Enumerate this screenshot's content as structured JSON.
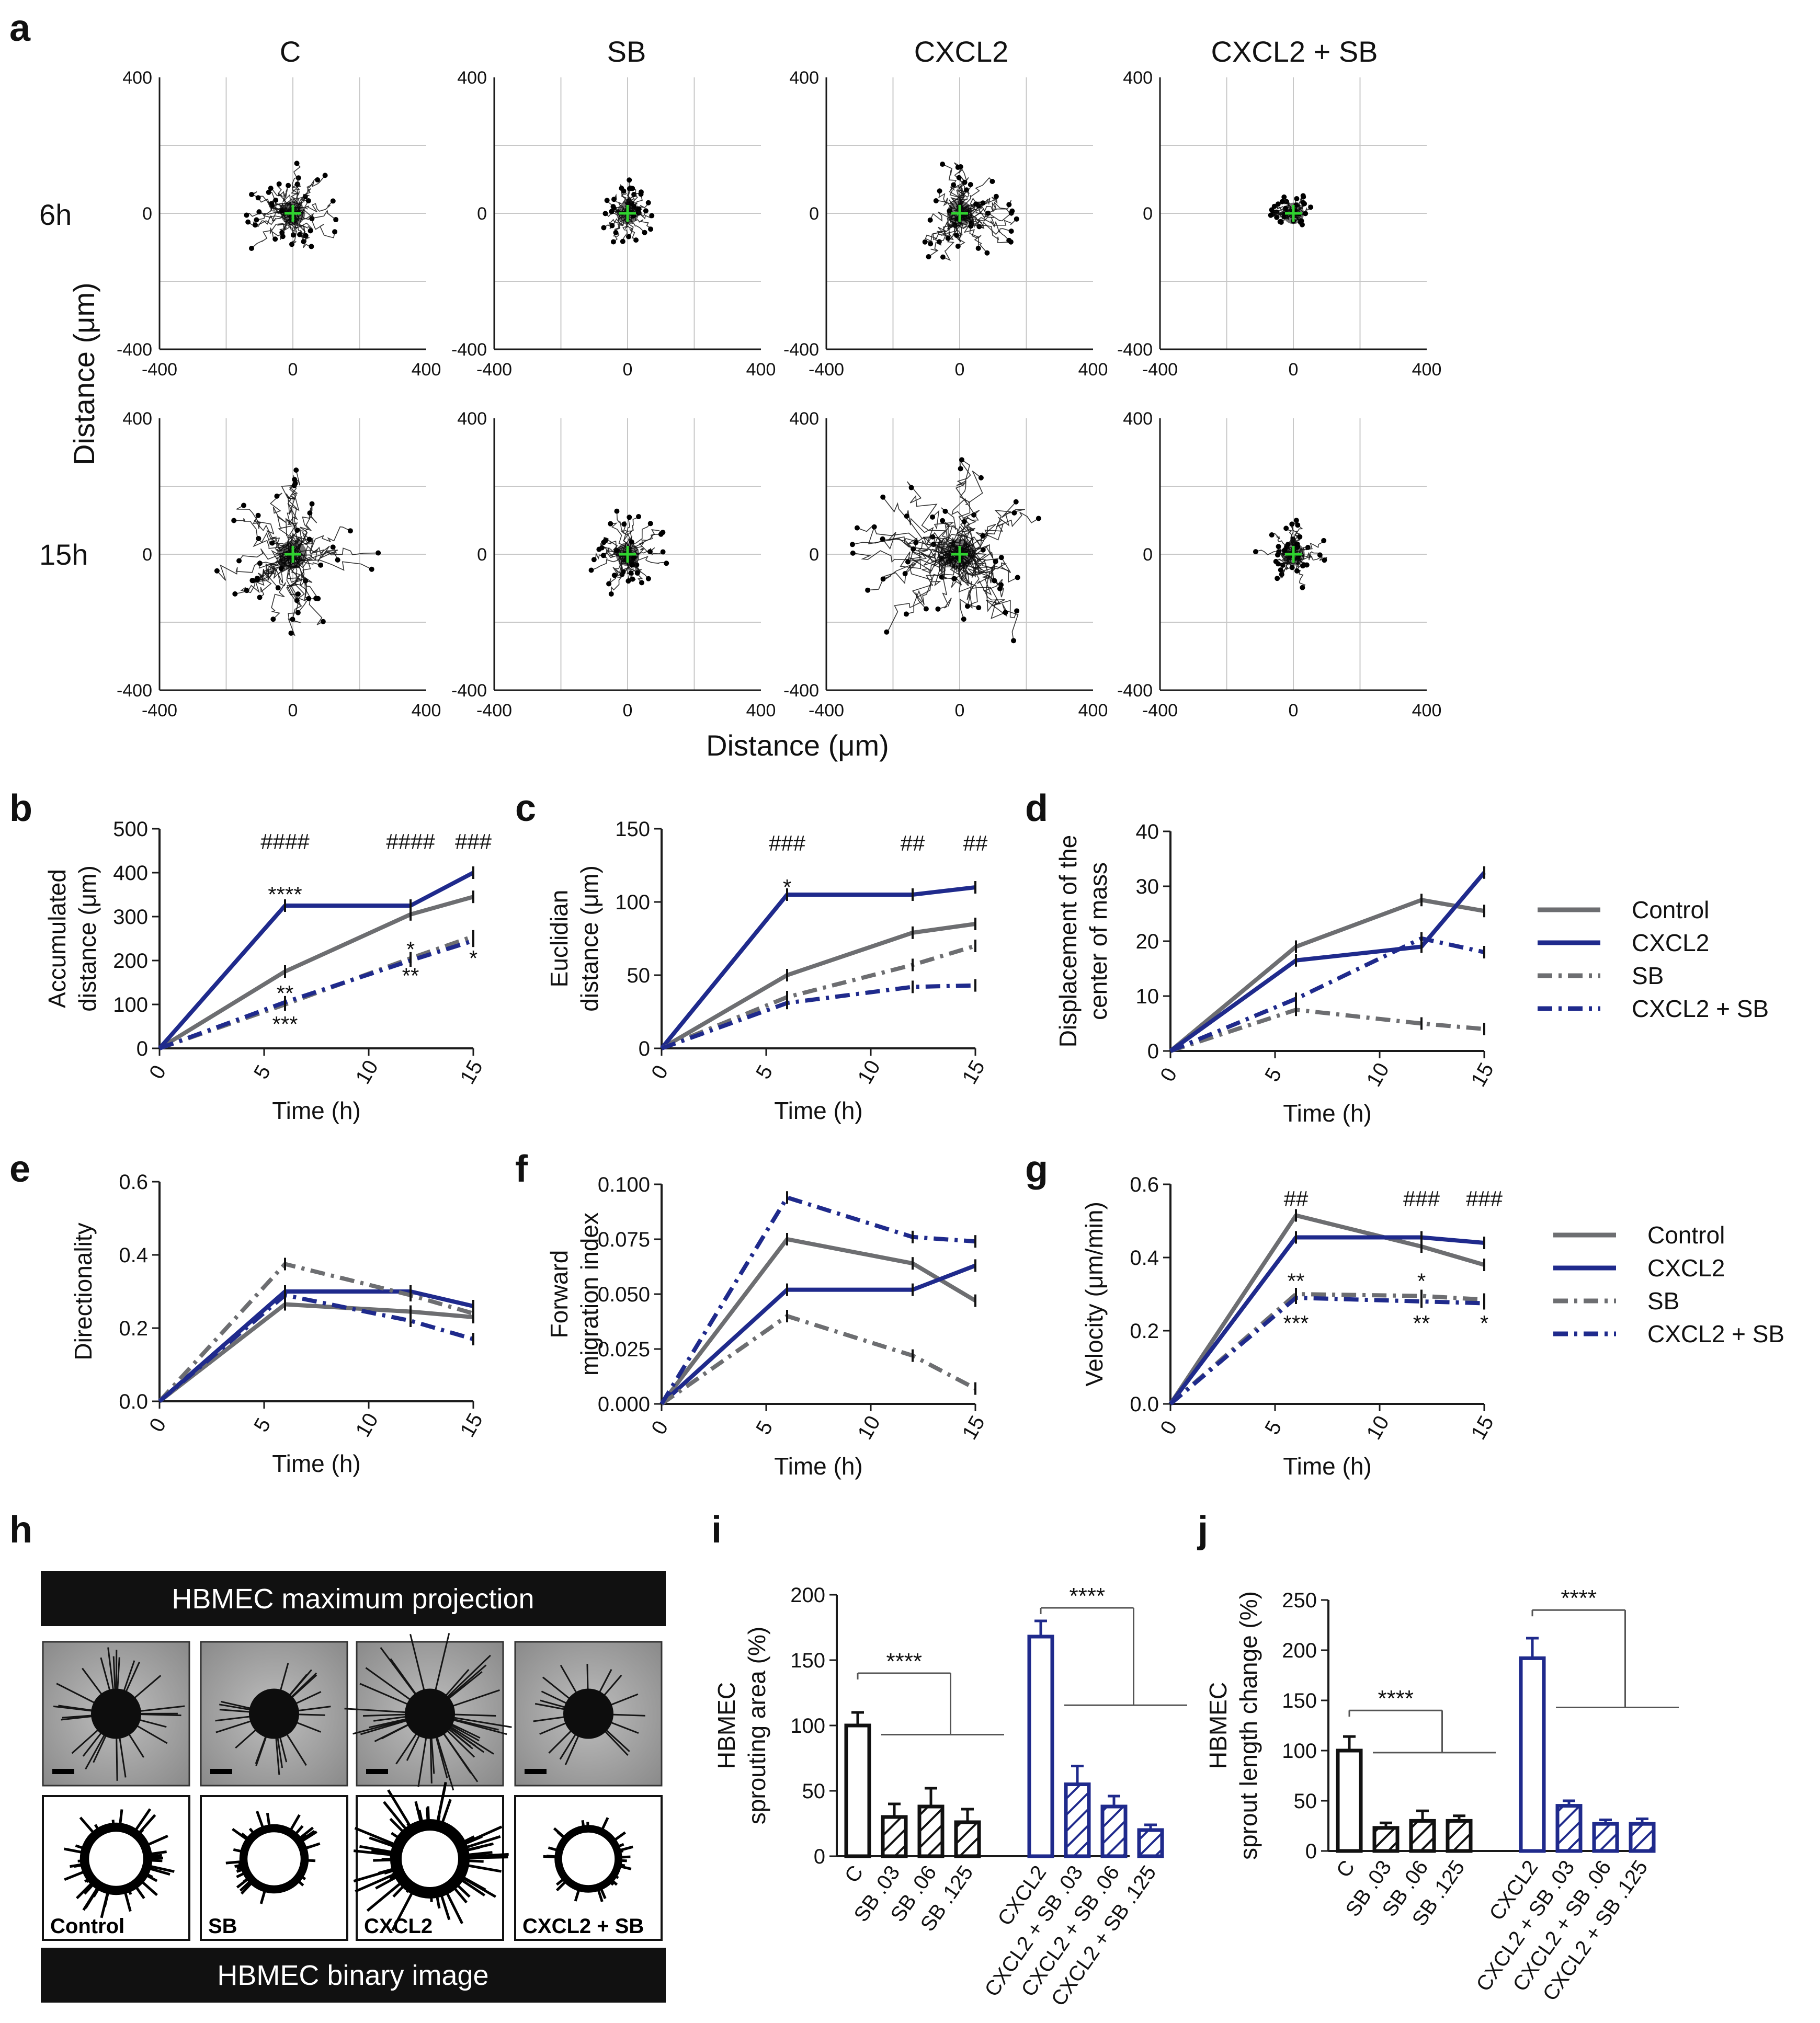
{
  "figure": {
    "panel_letters": [
      "a",
      "b",
      "c",
      "d",
      "e",
      "f",
      "g",
      "h",
      "i",
      "j"
    ],
    "colors": {
      "control": "#6d6e71",
      "cxcl2": "#1f2a8c",
      "sb": "#6d6e71",
      "cxcl2sb": "#1f2a8c",
      "axis": "#1a1a1a",
      "grid": "#c8c8c8",
      "tracks": "#111111",
      "center": "#2fd12f"
    }
  },
  "chart_data": [
    {
      "id": "a",
      "type": "scatter",
      "title": "Cell migration tracks (plots)",
      "columns": [
        "C",
        "SB",
        "CXCL2",
        "CXCL2 + SB"
      ],
      "rows": [
        "6h",
        "15h"
      ],
      "xlabel": "Distance (μm)",
      "ylabel": "Distance (μm)",
      "xlim": [
        -400,
        400
      ],
      "ylim": [
        -400,
        400
      ],
      "xticks": [
        "-400",
        "0",
        "400"
      ],
      "yticks": [
        "400",
        "0",
        "-400"
      ],
      "spread": {
        "6h": [
          0.9,
          0.55,
          1.05,
          0.4
        ],
        "15h": [
          1.45,
          0.75,
          1.9,
          0.65
        ]
      },
      "center_marker": "green cross at origin"
    },
    {
      "id": "b",
      "type": "line",
      "xlabel": "Time (h)",
      "ylabel": "Accumulated distance (μm)",
      "ylabel_lines": [
        "Accumulated",
        "distance (μm)"
      ],
      "xlim": [
        0,
        15
      ],
      "ylim": [
        0,
        500
      ],
      "xticks": [
        "0",
        "5",
        "10",
        "15"
      ],
      "yticks": [
        "0",
        "100",
        "200",
        "300",
        "400",
        "500"
      ],
      "x": [
        0,
        6,
        12,
        15
      ],
      "series": [
        {
          "name": "Control",
          "values": [
            0,
            175,
            305,
            345
          ],
          "style": "solid",
          "color": "#6d6e71"
        },
        {
          "name": "CXCL2",
          "values": [
            0,
            325,
            325,
            400
          ],
          "style": "solid",
          "color": "#1f2a8c"
        },
        {
          "name": "SB",
          "values": [
            0,
            100,
            205,
            255
          ],
          "style": "dashdot",
          "color": "#6d6e71"
        },
        {
          "name": "CXCL2 + SB",
          "values": [
            0,
            105,
            200,
            245
          ],
          "style": "dashdot",
          "color": "#1f2a8c"
        }
      ],
      "annotations": [
        {
          "text": "####",
          "x": 6,
          "y": 470
        },
        {
          "text": "####",
          "x": 12,
          "y": 470
        },
        {
          "text": "###",
          "x": 15,
          "y": 470
        },
        {
          "text": "****",
          "x": 6,
          "y": 350
        },
        {
          "text": "**",
          "x": 6,
          "y": 125
        },
        {
          "text": "***",
          "x": 6,
          "y": 55
        },
        {
          "text": "*",
          "x": 12,
          "y": 225
        },
        {
          "text": "**",
          "x": 12,
          "y": 165
        },
        {
          "text": "*",
          "x": 15,
          "y": 205
        }
      ]
    },
    {
      "id": "c",
      "type": "line",
      "xlabel": "Time (h)",
      "ylabel": "Euclidian distance (μm)",
      "ylabel_lines": [
        "Euclidian",
        "distance (μm)"
      ],
      "xlim": [
        0,
        15
      ],
      "ylim": [
        0,
        150
      ],
      "xticks": [
        "0",
        "5",
        "10",
        "15"
      ],
      "yticks": [
        "0",
        "50",
        "100",
        "150"
      ],
      "x": [
        0,
        6,
        12,
        15
      ],
      "series": [
        {
          "name": "Control",
          "values": [
            0,
            50,
            79,
            85
          ],
          "style": "solid",
          "color": "#6d6e71"
        },
        {
          "name": "CXCL2",
          "values": [
            0,
            105,
            105,
            110
          ],
          "style": "solid",
          "color": "#1f2a8c"
        },
        {
          "name": "SB",
          "values": [
            0,
            35,
            57,
            70
          ],
          "style": "dashdot",
          "color": "#6d6e71"
        },
        {
          "name": "CXCL2 + SB",
          "values": [
            0,
            31,
            42,
            43
          ],
          "style": "dashdot",
          "color": "#1f2a8c"
        }
      ],
      "annotations": [
        {
          "text": "###",
          "x": 6,
          "y": 140
        },
        {
          "text": "##",
          "x": 12,
          "y": 140
        },
        {
          "text": "##",
          "x": 15,
          "y": 140
        },
        {
          "text": "*",
          "x": 6,
          "y": 110
        }
      ]
    },
    {
      "id": "d",
      "type": "line",
      "xlabel": "Time (h)",
      "ylabel": "Displacement of the center of mass",
      "ylabel_lines": [
        "Displacement of the",
        "center of mass"
      ],
      "xlim": [
        0,
        15
      ],
      "ylim": [
        0,
        40
      ],
      "xticks": [
        "0",
        "5",
        "10",
        "15"
      ],
      "yticks": [
        "0",
        "10",
        "20",
        "30",
        "40"
      ],
      "x": [
        0,
        6,
        12,
        15
      ],
      "series": [
        {
          "name": "Control",
          "values": [
            0,
            19,
            27.5,
            25.5
          ],
          "style": "solid",
          "color": "#6d6e71"
        },
        {
          "name": "CXCL2",
          "values": [
            0,
            16.5,
            19,
            32.5
          ],
          "style": "solid",
          "color": "#1f2a8c"
        },
        {
          "name": "SB",
          "values": [
            0,
            7.5,
            5,
            4
          ],
          "style": "dashdot",
          "color": "#6d6e71"
        },
        {
          "name": "CXCL2 + SB",
          "values": [
            0,
            9.5,
            20.5,
            18
          ],
          "style": "dashdot",
          "color": "#1f2a8c"
        }
      ],
      "annotations": []
    },
    {
      "id": "e",
      "type": "line",
      "xlabel": "Time (h)",
      "ylabel": "Directionality",
      "ylabel_lines": [
        "Directionality"
      ],
      "xlim": [
        0,
        15
      ],
      "ylim": [
        0,
        0.6
      ],
      "xticks": [
        "0",
        "5",
        "10",
        "15"
      ],
      "yticks": [
        "0.0",
        "0.2",
        "0.4",
        "0.6"
      ],
      "x": [
        0,
        6,
        12,
        15
      ],
      "series": [
        {
          "name": "Control",
          "values": [
            0,
            0.265,
            0.245,
            0.23
          ],
          "style": "solid",
          "color": "#6d6e71"
        },
        {
          "name": "CXCL2",
          "values": [
            0,
            0.3,
            0.3,
            0.26
          ],
          "style": "solid",
          "color": "#1f2a8c"
        },
        {
          "name": "SB",
          "values": [
            0,
            0.375,
            0.29,
            0.24
          ],
          "style": "dashdot",
          "color": "#6d6e71"
        },
        {
          "name": "CXCL2 + SB",
          "values": [
            0,
            0.29,
            0.22,
            0.17
          ],
          "style": "dashdot",
          "color": "#1f2a8c"
        }
      ],
      "annotations": []
    },
    {
      "id": "f",
      "type": "line",
      "xlabel": "Time (h)",
      "ylabel": "Forward migration index",
      "ylabel_lines": [
        "Forward",
        "migration index"
      ],
      "xlim": [
        0,
        15
      ],
      "ylim": [
        0,
        0.1
      ],
      "xticks": [
        "0",
        "5",
        "10",
        "15"
      ],
      "yticks": [
        "0.000",
        "0.025",
        "0.050",
        "0.075",
        "0.100"
      ],
      "x": [
        0,
        6,
        12,
        15
      ],
      "series": [
        {
          "name": "Control",
          "values": [
            0,
            0.075,
            0.064,
            0.047
          ],
          "style": "solid",
          "color": "#6d6e71"
        },
        {
          "name": "CXCL2",
          "values": [
            0,
            0.052,
            0.052,
            0.063
          ],
          "style": "solid",
          "color": "#1f2a8c"
        },
        {
          "name": "SB",
          "values": [
            0,
            0.04,
            0.022,
            0.007
          ],
          "style": "dashdot",
          "color": "#6d6e71"
        },
        {
          "name": "CXCL2 + SB",
          "values": [
            0,
            0.094,
            0.076,
            0.074
          ],
          "style": "dashdot",
          "color": "#1f2a8c"
        }
      ],
      "annotations": []
    },
    {
      "id": "g",
      "type": "line",
      "xlabel": "Time (h)",
      "ylabel": "Velocity (μm/min)",
      "ylabel_lines": [
        "Velocity (μm/min)"
      ],
      "xlim": [
        0,
        15
      ],
      "ylim": [
        0,
        0.6
      ],
      "xticks": [
        "0",
        "5",
        "10",
        "15"
      ],
      "yticks": [
        "0.0",
        "0.2",
        "0.4",
        "0.6"
      ],
      "x": [
        0,
        6,
        12,
        15
      ],
      "series": [
        {
          "name": "Control",
          "values": [
            0,
            0.515,
            0.43,
            0.38
          ],
          "style": "solid",
          "color": "#6d6e71"
        },
        {
          "name": "CXCL2",
          "values": [
            0,
            0.455,
            0.455,
            0.44
          ],
          "style": "solid",
          "color": "#1f2a8c"
        },
        {
          "name": "SB",
          "values": [
            0,
            0.3,
            0.295,
            0.285
          ],
          "style": "dashdot",
          "color": "#6d6e71"
        },
        {
          "name": "CXCL2 + SB",
          "values": [
            0,
            0.29,
            0.28,
            0.275
          ],
          "style": "dashdot",
          "color": "#1f2a8c"
        }
      ],
      "annotations": [
        {
          "text": "##",
          "x": 6,
          "y": 0.56
        },
        {
          "text": "###",
          "x": 12,
          "y": 0.56
        },
        {
          "text": "###",
          "x": 15,
          "y": 0.56
        },
        {
          "text": "**",
          "x": 6,
          "y": 0.335
        },
        {
          "text": "***",
          "x": 6,
          "y": 0.22
        },
        {
          "text": "*",
          "x": 12,
          "y": 0.335
        },
        {
          "text": "**",
          "x": 12,
          "y": 0.22
        },
        {
          "text": "*",
          "x": 15,
          "y": 0.22
        }
      ]
    },
    {
      "id": "i",
      "type": "bar",
      "ylabel": "HBMEC sprouting area (%)",
      "ylabel_lines": [
        "HBMEC",
        "sprouting area (%)"
      ],
      "ylim": [
        0,
        200
      ],
      "yticks": [
        "0",
        "50",
        "100",
        "150",
        "200"
      ],
      "categories": [
        "C",
        "SB .03",
        "SB .06",
        "SB .125",
        "CXCL2",
        "CXCL2 + SB .03",
        "CXCL2 + SB .06",
        "CXCL2 + SB .125"
      ],
      "values": [
        100,
        30,
        38,
        26,
        168,
        55,
        38,
        20
      ],
      "errors": [
        10,
        10,
        14,
        10,
        12,
        14,
        8,
        4
      ],
      "hatched": [
        false,
        true,
        true,
        true,
        false,
        true,
        true,
        true
      ],
      "colors": [
        "#111111",
        "#111111",
        "#111111",
        "#111111",
        "#1f2a8c",
        "#1f2a8c",
        "#1f2a8c",
        "#1f2a8c"
      ],
      "significance": [
        {
          "text": "****",
          "from": 0,
          "to_group": [
            1,
            3
          ],
          "y": 140
        },
        {
          "text": "****",
          "from": 4,
          "to_group": [
            5,
            7
          ],
          "y": 190
        }
      ]
    },
    {
      "id": "j",
      "type": "bar",
      "ylabel": "HBMEC sprout length change (%)",
      "ylabel_lines": [
        "HBMEC",
        "sprout length change (%)"
      ],
      "ylim": [
        0,
        250
      ],
      "yticks": [
        "0",
        "50",
        "100",
        "150",
        "200",
        "250"
      ],
      "categories": [
        "C",
        "SB .03",
        "SB .06",
        "SB .125",
        "CXCL2",
        "CXCL2 + SB .03",
        "CXCL2 + SB .06",
        "CXCL2 + SB .125"
      ],
      "values": [
        100,
        23,
        30,
        30,
        192,
        45,
        27,
        27
      ],
      "errors": [
        14,
        5,
        10,
        5,
        20,
        5,
        4,
        5
      ],
      "hatched": [
        false,
        true,
        true,
        true,
        false,
        true,
        true,
        true
      ],
      "colors": [
        "#111111",
        "#111111",
        "#111111",
        "#111111",
        "#1f2a8c",
        "#1f2a8c",
        "#1f2a8c",
        "#1f2a8c"
      ],
      "significance": [
        {
          "text": "****",
          "from": 0,
          "to_group": [
            1,
            3
          ],
          "y": 140
        },
        {
          "text": "****",
          "from": 4,
          "to_group": [
            5,
            7
          ],
          "y": 240
        }
      ]
    }
  ],
  "legend_top": {
    "entries": [
      "Control",
      "CXCL2",
      "SB",
      "CXCL2 + SB"
    ]
  },
  "legend_bottom": {
    "entries": [
      "Control",
      "CXCL2",
      "SB",
      "CXCL2 + SB"
    ]
  },
  "panel_h": {
    "top_banner": "HBMEC maximum projection",
    "bottom_banner": "HBMEC binary image",
    "image_labels": [
      "Control",
      "SB",
      "CXCL2",
      "CXCL2 + SB"
    ],
    "sprout_level": [
      0.55,
      0.35,
      1.0,
      0.25
    ]
  }
}
